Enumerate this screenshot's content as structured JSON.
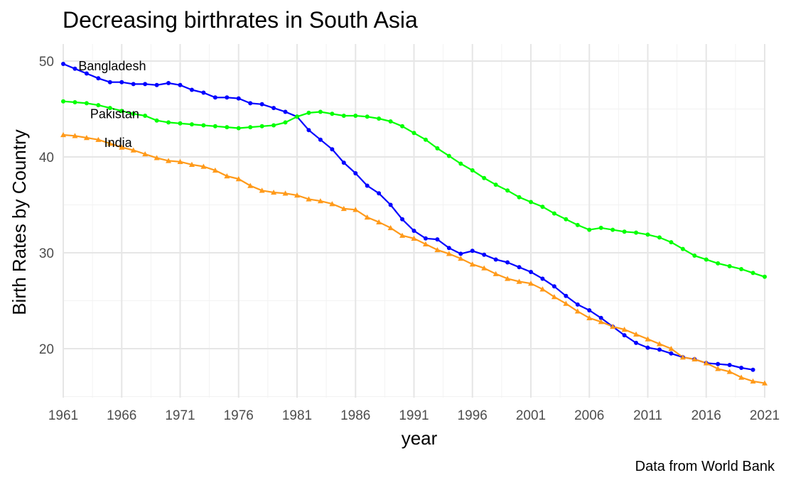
{
  "chart_data": {
    "type": "line",
    "title": "Decreasing birthrates in South Asia",
    "xlabel": "year",
    "ylabel": "Birth Rates by Country",
    "caption": "Data from World Bank",
    "xlim": [
      1961,
      2021
    ],
    "ylim": [
      15,
      51.5
    ],
    "x_ticks": [
      1961,
      1966,
      1971,
      1976,
      1981,
      1986,
      1991,
      1996,
      2001,
      2006,
      2011,
      2016,
      2021
    ],
    "y_ticks": [
      20,
      30,
      40,
      50
    ],
    "grid": true,
    "x": [
      1961,
      1962,
      1963,
      1964,
      1965,
      1966,
      1967,
      1968,
      1969,
      1970,
      1971,
      1972,
      1973,
      1974,
      1975,
      1976,
      1977,
      1978,
      1979,
      1980,
      1981,
      1982,
      1983,
      1984,
      1985,
      1986,
      1987,
      1988,
      1989,
      1990,
      1991,
      1992,
      1993,
      1994,
      1995,
      1996,
      1997,
      1998,
      1999,
      2000,
      2001,
      2002,
      2003,
      2004,
      2005,
      2006,
      2007,
      2008,
      2009,
      2010,
      2011,
      2012,
      2013,
      2014,
      2015,
      2016,
      2017,
      2018,
      2019,
      2020,
      2021
    ],
    "series": [
      {
        "name": "Bangladesh",
        "color": "#0000ff",
        "marker": "circle",
        "label_at": [
          1962.3,
          49.5
        ],
        "values": [
          49.7,
          49.2,
          48.7,
          48.2,
          47.8,
          47.8,
          47.6,
          47.6,
          47.5,
          47.7,
          47.5,
          47.0,
          46.7,
          46.2,
          46.2,
          46.1,
          45.6,
          45.5,
          45.1,
          44.7,
          44.2,
          42.8,
          41.8,
          40.8,
          39.4,
          38.3,
          37.0,
          36.2,
          35.0,
          33.5,
          32.3,
          31.5,
          31.4,
          30.5,
          29.9,
          30.2,
          29.8,
          29.3,
          29.0,
          28.5,
          28.0,
          27.3,
          26.5,
          25.5,
          24.6,
          24.0,
          23.2,
          22.3,
          21.4,
          20.6,
          20.1,
          19.9,
          19.5,
          19.1,
          18.9,
          18.5,
          18.4,
          18.3,
          18.0,
          17.8,
          null
        ]
      },
      {
        "name": "Pakistan",
        "color": "#00ff00",
        "marker": "circle",
        "label_at": [
          1963.3,
          44.5
        ],
        "values": [
          45.8,
          45.7,
          45.6,
          45.4,
          45.1,
          44.8,
          44.5,
          44.3,
          43.8,
          43.6,
          43.5,
          43.4,
          43.3,
          43.2,
          43.1,
          43.0,
          43.1,
          43.2,
          43.3,
          43.6,
          44.2,
          44.6,
          44.7,
          44.5,
          44.3,
          44.3,
          44.2,
          44.0,
          43.7,
          43.2,
          42.5,
          41.8,
          40.9,
          40.1,
          39.3,
          38.6,
          37.8,
          37.1,
          36.5,
          35.8,
          35.3,
          34.8,
          34.1,
          33.5,
          32.9,
          32.4,
          32.6,
          32.4,
          32.2,
          32.1,
          31.9,
          31.6,
          31.1,
          30.4,
          29.7,
          29.3,
          28.9,
          28.6,
          28.3,
          27.9,
          27.5
        ]
      },
      {
        "name": "India",
        "color": "#ff9a1a",
        "marker": "triangle",
        "label_at": [
          1964.5,
          41.5
        ],
        "values": [
          42.3,
          42.2,
          42.0,
          41.8,
          41.4,
          41.0,
          40.7,
          40.3,
          39.9,
          39.6,
          39.5,
          39.2,
          39.0,
          38.6,
          38.0,
          37.7,
          37.0,
          36.5,
          36.3,
          36.2,
          36.0,
          35.6,
          35.4,
          35.1,
          34.6,
          34.5,
          33.7,
          33.2,
          32.6,
          31.8,
          31.5,
          30.9,
          30.3,
          29.9,
          29.4,
          28.8,
          28.4,
          27.8,
          27.3,
          27.0,
          26.8,
          26.2,
          25.4,
          24.7,
          23.9,
          23.2,
          22.8,
          22.3,
          22.0,
          21.5,
          21.0,
          20.5,
          20.0,
          19.1,
          18.9,
          18.5,
          17.9,
          17.6,
          17.0,
          16.6,
          16.4
        ]
      }
    ]
  }
}
